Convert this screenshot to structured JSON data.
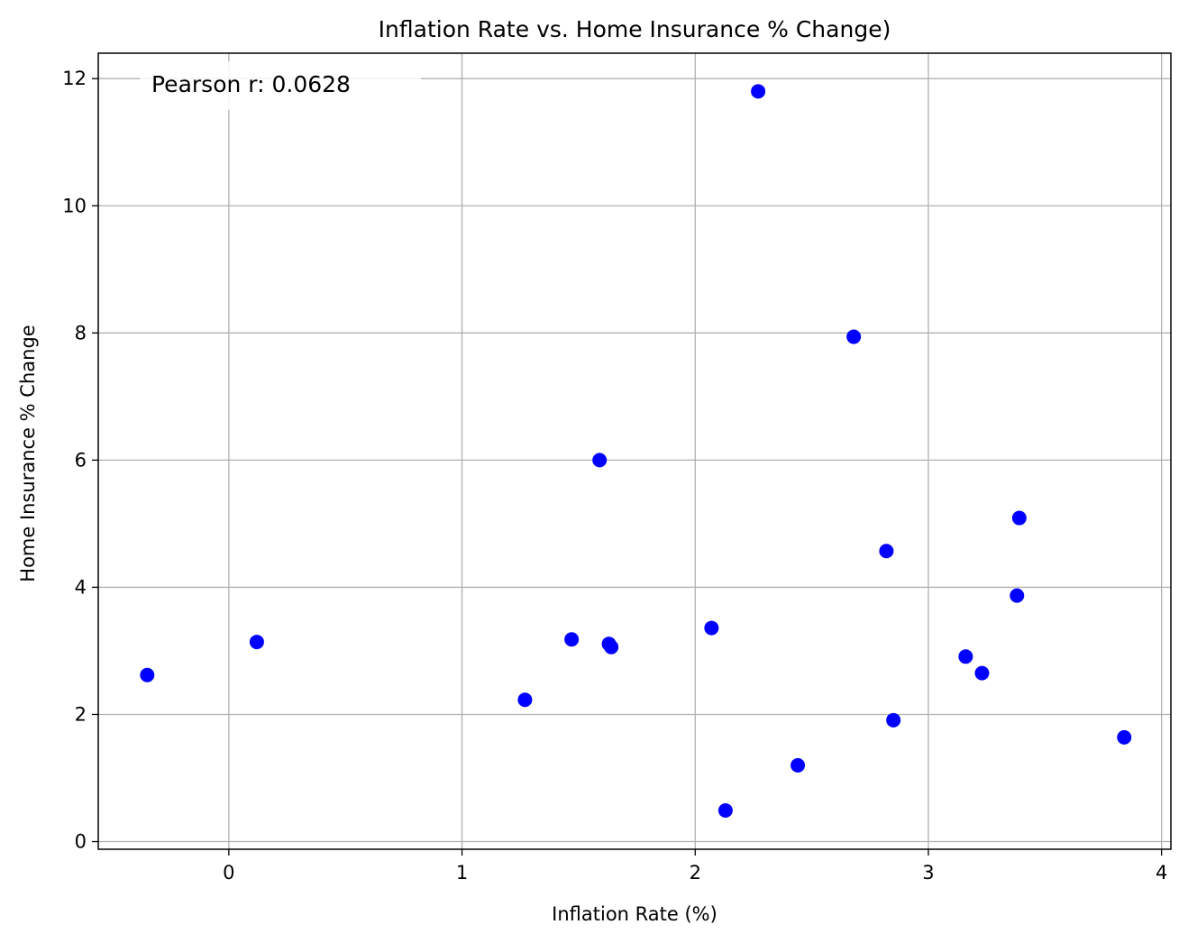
{
  "chart_data": {
    "type": "scatter",
    "title": "Inflation Rate vs. Home Insurance % Change)",
    "xlabel": "Inflation Rate (%)",
    "ylabel": "Home Insurance % Change",
    "xlim": [
      -0.56,
      4.04
    ],
    "ylim": [
      -0.12,
      12.4
    ],
    "xticks": [
      0,
      1,
      2,
      3,
      4
    ],
    "yticks": [
      0,
      2,
      4,
      6,
      8,
      10,
      12
    ],
    "grid": true,
    "annotation": "Pearson r: 0.0628",
    "annotation_position": "top-left",
    "marker_color": "#0000ff",
    "points": [
      {
        "x": -0.35,
        "y": 2.62
      },
      {
        "x": 0.12,
        "y": 3.14
      },
      {
        "x": 1.27,
        "y": 2.23
      },
      {
        "x": 1.47,
        "y": 3.18
      },
      {
        "x": 1.59,
        "y": 6.0
      },
      {
        "x": 1.63,
        "y": 3.11
      },
      {
        "x": 1.64,
        "y": 3.06
      },
      {
        "x": 2.07,
        "y": 3.36
      },
      {
        "x": 2.13,
        "y": 0.49
      },
      {
        "x": 2.27,
        "y": 11.8
      },
      {
        "x": 2.44,
        "y": 1.2
      },
      {
        "x": 2.68,
        "y": 7.94
      },
      {
        "x": 2.82,
        "y": 4.57
      },
      {
        "x": 2.85,
        "y": 1.91
      },
      {
        "x": 3.16,
        "y": 2.91
      },
      {
        "x": 3.23,
        "y": 2.65
      },
      {
        "x": 3.38,
        "y": 3.87
      },
      {
        "x": 3.39,
        "y": 5.09
      },
      {
        "x": 3.84,
        "y": 1.64
      }
    ]
  }
}
